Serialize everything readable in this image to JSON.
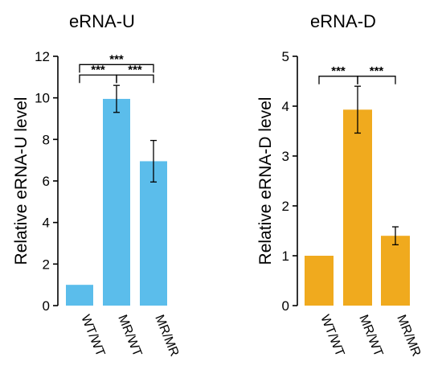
{
  "chart_data": [
    {
      "type": "bar",
      "title": "eRNA-U",
      "xlabel": "",
      "ylabel": "Relative eRNA-U level",
      "categories": [
        "WT/WT",
        "MR/WT",
        "MR/MR"
      ],
      "values": [
        1.0,
        9.95,
        6.95
      ],
      "errors": [
        0,
        0.65,
        1.0
      ],
      "ylim": [
        0,
        12
      ],
      "yticks": [
        "0",
        "2",
        "4",
        "6",
        "8",
        "10",
        "12"
      ],
      "color": "#5BBDEB",
      "grid": false,
      "significance": [
        {
          "from": 1,
          "to": 2,
          "label": "***",
          "level": 11.6
        },
        {
          "from": 0,
          "to": 1,
          "label": "***",
          "level": 11.1
        },
        {
          "from": 1,
          "to": 2,
          "label": "***",
          "level": 11.1
        }
      ]
    },
    {
      "type": "bar",
      "title": "eRNA-D",
      "xlabel": "",
      "ylabel": "Relative eRNA-D level",
      "categories": [
        "WT/WT",
        "MR/WT",
        "MR/MR"
      ],
      "values": [
        1.0,
        3.93,
        1.4
      ],
      "errors": [
        0,
        0.47,
        0.18
      ],
      "ylim": [
        0,
        5
      ],
      "yticks": [
        "0",
        "1",
        "2",
        "3",
        "4",
        "5"
      ],
      "color": "#F0AA1E",
      "grid": false,
      "significance": [
        {
          "from": 0,
          "to": 1,
          "label": "***",
          "level": 4.6
        },
        {
          "from": 1,
          "to": 2,
          "label": "***",
          "level": 4.6
        }
      ]
    }
  ]
}
